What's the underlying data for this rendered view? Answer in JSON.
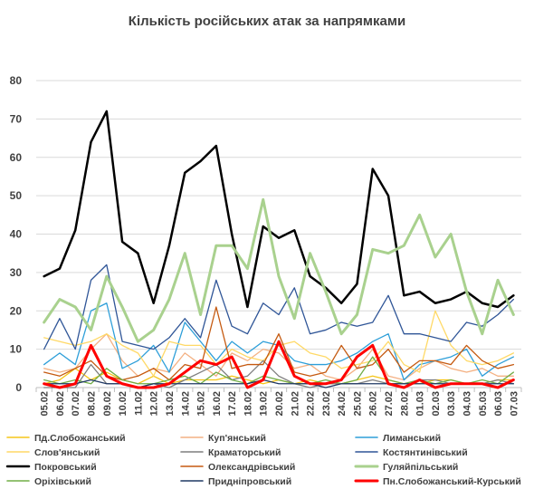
{
  "chart_data": {
    "type": "line",
    "title": "Кількість російських атак за напрямками",
    "x": [
      "05.02",
      "06.02",
      "07.02",
      "08.02",
      "09.02",
      "10.02",
      "11.02",
      "12.02",
      "13.02",
      "14.02",
      "15.02",
      "16.02",
      "17.02",
      "18.02",
      "19.02",
      "20.02",
      "21.02",
      "22.02",
      "23.02",
      "24.02",
      "25.02",
      "26.02",
      "27.02",
      "28.02",
      "01.03",
      "02.03",
      "03.03",
      "04.03",
      "05.03",
      "06.03",
      "07.03"
    ],
    "ylim": [
      0,
      80
    ],
    "yticks": [
      0,
      10,
      20,
      30,
      40,
      50,
      60,
      70,
      80
    ],
    "grid": true,
    "legend_position": "bottom",
    "series": [
      {
        "name": "Пд.Слобожанський",
        "color": "#f5c518",
        "width": 1.3,
        "values": [
          1,
          2,
          5,
          2,
          4,
          2,
          1,
          3,
          1,
          2,
          2,
          2,
          3,
          2,
          1,
          2,
          1,
          2,
          1,
          1,
          2,
          3,
          2,
          1,
          1,
          2,
          2,
          1,
          1,
          2,
          2
        ]
      },
      {
        "name": "Куп'янський",
        "color": "#f4b183",
        "width": 1.3,
        "values": [
          5,
          4,
          5,
          10,
          14,
          7,
          3,
          5,
          4,
          9,
          6,
          3,
          9,
          7,
          10,
          9,
          5,
          6,
          3,
          2,
          5,
          10,
          3,
          2,
          5,
          7,
          5,
          4,
          5,
          3,
          3
        ]
      },
      {
        "name": "Лиманський",
        "color": "#2e9fd9",
        "width": 1.3,
        "values": [
          6,
          9,
          6,
          20,
          22,
          5,
          7,
          11,
          4,
          17,
          12,
          7,
          12,
          9,
          12,
          11,
          7,
          6,
          6,
          7,
          9,
          12,
          14,
          2,
          6,
          7,
          8,
          10,
          3,
          6,
          8
        ]
      },
      {
        "name": "Слов'янський",
        "color": "#ffd966",
        "width": 1.3,
        "values": [
          13,
          12,
          11,
          12,
          14,
          11,
          9,
          3,
          12,
          11,
          11,
          6,
          10,
          8,
          7,
          11,
          12,
          9,
          8,
          5,
          6,
          7,
          12,
          6,
          4,
          20,
          11,
          7,
          6,
          7,
          9
        ]
      },
      {
        "name": "Краматорський",
        "color": "#7f7f7f",
        "width": 1.3,
        "values": [
          0,
          0,
          0,
          6,
          1,
          1,
          0,
          1,
          0,
          2,
          4,
          6,
          2,
          3,
          7,
          3,
          1,
          0,
          1,
          1,
          1,
          2,
          1,
          1,
          2,
          2,
          1,
          1,
          1,
          2,
          1
        ]
      },
      {
        "name": "Костянтинівський",
        "color": "#2f5597",
        "width": 1.3,
        "values": [
          10,
          18,
          10,
          28,
          32,
          12,
          11,
          10,
          13,
          18,
          13,
          28,
          16,
          14,
          22,
          19,
          26,
          14,
          15,
          17,
          16,
          17,
          24,
          14,
          14,
          13,
          12,
          17,
          16,
          19,
          23
        ]
      },
      {
        "name": "Покровський",
        "color": "#000000",
        "width": 2.5,
        "values": [
          29,
          31,
          41,
          64,
          72,
          38,
          35,
          22,
          37,
          56,
          59,
          63,
          40,
          21,
          42,
          39,
          41,
          29,
          26,
          22,
          27,
          57,
          50,
          24,
          25,
          22,
          23,
          25,
          22,
          21,
          24
        ]
      },
      {
        "name": "Олександрівський",
        "color": "#c55a11",
        "width": 1.3,
        "values": [
          4,
          3,
          5,
          7,
          3,
          2,
          3,
          5,
          2,
          6,
          5,
          21,
          5,
          6,
          6,
          14,
          4,
          3,
          4,
          11,
          5,
          6,
          10,
          4,
          7,
          7,
          6,
          11,
          7,
          5,
          6
        ]
      },
      {
        "name": "Гуляйпільський",
        "color": "#a9d18e",
        "width": 3,
        "values": [
          17,
          23,
          21,
          15,
          29,
          21,
          12,
          15,
          23,
          35,
          19,
          37,
          37,
          31,
          49,
          29,
          18,
          35,
          25,
          14,
          19,
          36,
          35,
          37,
          45,
          34,
          40,
          25,
          14,
          28,
          19
        ]
      },
      {
        "name": "Оріхівський",
        "color": "#70ad47",
        "width": 1.3,
        "values": [
          2,
          1,
          2,
          1,
          5,
          2,
          1,
          1,
          2,
          3,
          1,
          4,
          2,
          1,
          3,
          2,
          1,
          1,
          2,
          1,
          2,
          8,
          2,
          1,
          2,
          1,
          2,
          1,
          2,
          1,
          4
        ]
      },
      {
        "name": "Придніпровський",
        "color": "#1f3864",
        "width": 1.3,
        "values": [
          1,
          1,
          1,
          2,
          1,
          1,
          0,
          1,
          1,
          1,
          1,
          1,
          1,
          1,
          2,
          1,
          1,
          1,
          0,
          1,
          1,
          1,
          1,
          1,
          1,
          1,
          1,
          1,
          1,
          1,
          1
        ]
      },
      {
        "name": "Пн.Слобожанський-Курський",
        "color": "#ff0000",
        "width": 3,
        "values": [
          1,
          0,
          1,
          11,
          3,
          1,
          0,
          0,
          1,
          4,
          7,
          6,
          8,
          0,
          2,
          12,
          3,
          1,
          1,
          2,
          8,
          11,
          1,
          0,
          2,
          0,
          1,
          1,
          1,
          0,
          2
        ]
      }
    ]
  }
}
